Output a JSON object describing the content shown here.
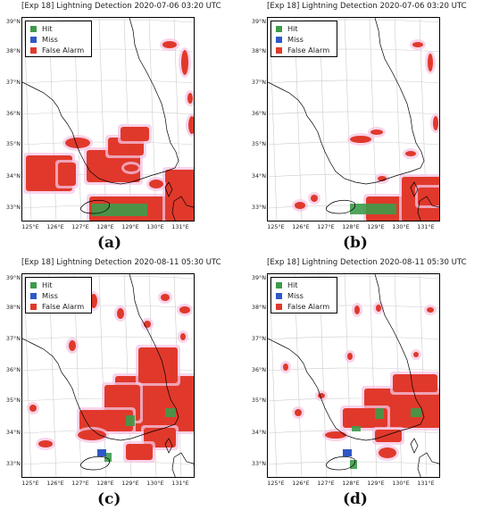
{
  "legend": {
    "items": [
      {
        "label": "Hit",
        "color": "#3d9b4a"
      },
      {
        "label": "Miss",
        "color": "#2f57c8"
      },
      {
        "label": "False Alarm",
        "color": "#e0392b"
      }
    ]
  },
  "lat_labels": [
    "39°N",
    "38°N",
    "37°N",
    "36°N",
    "35°N",
    "34°N",
    "33°N"
  ],
  "lon_labels": [
    "125°E",
    "126°E",
    "127°E",
    "128°E",
    "129°E",
    "130°E",
    "131°E"
  ],
  "panels": [
    {
      "title": "[Exp 18] Lightning Detection 2020-07-06 03:20 UTC",
      "caption": "(a)"
    },
    {
      "title": "[Exp 18] Lightning Detection 2020-07-06 03:20 UTC",
      "caption": "(b)"
    },
    {
      "title": "[Exp 18] Lightning Detection 2020-08-11 05:30 UTC",
      "caption": "(c)"
    },
    {
      "title": "[Exp 18] Lightning Detection 2020-08-11 05:30 UTC",
      "caption": "(d)"
    }
  ]
}
